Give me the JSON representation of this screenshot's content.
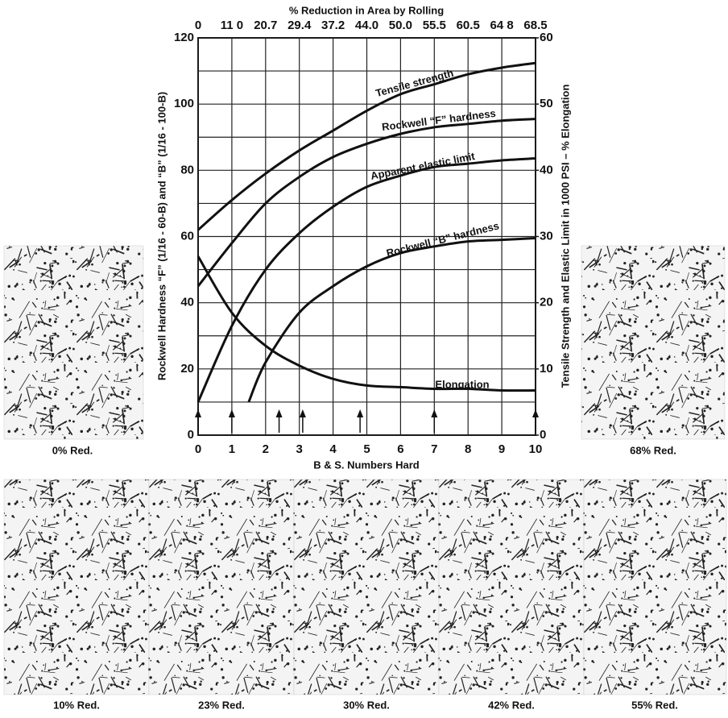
{
  "chart_data": {
    "type": "line",
    "title": "% Reduction in Area by Rolling",
    "xlabel": "B & S. Numbers Hard",
    "ylabel": "Rockwell Hardness “F” (1/16 - 60-B) and “B” (1/16 - 100-B)",
    "y2label": "Tensile Strength and Elastic Limit in 1000 PSI – % Elongation",
    "xlim": [
      0,
      10
    ],
    "xticks": [
      0,
      1,
      2,
      3,
      4,
      5,
      6,
      7,
      8,
      9,
      10
    ],
    "x2ticks": [
      {
        "value": 0,
        "label": "0"
      },
      {
        "value": 11.0,
        "label": "11 0"
      },
      {
        "value": 20.7,
        "label": "20.7"
      },
      {
        "value": 29.4,
        "label": "29.4"
      },
      {
        "value": 37.2,
        "label": "37.2"
      },
      {
        "value": 44.0,
        "label": "44.0"
      },
      {
        "value": 50.0,
        "label": "50.0"
      },
      {
        "value": 55.5,
        "label": "55.5"
      },
      {
        "value": 60.5,
        "label": "60.5"
      },
      {
        "value": 64.8,
        "label": "64 8"
      },
      {
        "value": 68.5,
        "label": "68.5"
      }
    ],
    "ylim": [
      0,
      120
    ],
    "yticks": [
      0,
      20,
      40,
      60,
      80,
      100,
      120
    ],
    "yminor": [
      10,
      30,
      50,
      70,
      90,
      110
    ],
    "y2lim": [
      0,
      60
    ],
    "y2ticks": [
      0,
      10,
      20,
      30,
      40,
      50,
      60
    ],
    "grid": true,
    "series": [
      {
        "name": "Tensile strength",
        "color": "#111111",
        "axis": "y2",
        "x": [
          0,
          1,
          2,
          3,
          4,
          5,
          6,
          7,
          8,
          9,
          10
        ],
        "values": [
          31,
          35.5,
          39.5,
          43,
          46,
          49,
          51.5,
          53,
          54.5,
          55.5,
          56.2
        ]
      },
      {
        "name": "Rockwell “F” hardness",
        "color": "#111111",
        "x": [
          0,
          1,
          2,
          3,
          4,
          5,
          6,
          7,
          8,
          9,
          10
        ],
        "values": [
          45,
          58,
          70,
          78,
          84,
          88,
          91,
          93,
          94,
          95,
          95.5
        ]
      },
      {
        "name": "Apparent elastic limit",
        "color": "#111111",
        "axis": "y2",
        "x": [
          0,
          1,
          2,
          3,
          4,
          5,
          6,
          7,
          8,
          9,
          10
        ],
        "values": [
          5,
          16.5,
          25,
          30.5,
          34.5,
          37.5,
          39.2,
          40.5,
          41,
          41.5,
          41.8
        ]
      },
      {
        "name": "Rockwell “B” hardness",
        "color": "#111111",
        "x": [
          1.5,
          2,
          3,
          4,
          5,
          6,
          7,
          8,
          9,
          10
        ],
        "values": [
          10,
          22,
          37,
          45,
          51,
          55,
          57,
          58.5,
          59,
          59.5
        ]
      },
      {
        "name": "Elongation",
        "color": "#111111",
        "axis": "y2",
        "x": [
          0,
          1,
          2,
          3,
          4,
          5,
          6,
          7,
          8,
          9,
          10
        ],
        "values": [
          27,
          18.5,
          13.5,
          10.5,
          8.5,
          7.5,
          7.25,
          7,
          7,
          6.75,
          6.75
        ]
      }
    ],
    "arrows_x": [
      0,
      1,
      2.4,
      3.1,
      4.8,
      7,
      10
    ],
    "micrographs": [
      {
        "caption": "0% Red."
      },
      {
        "caption": "68% Red."
      },
      {
        "caption": "10% Red."
      },
      {
        "caption": "23% Red."
      },
      {
        "caption": "30% Red."
      },
      {
        "caption": "42% Red."
      },
      {
        "caption": "55% Red."
      }
    ]
  }
}
